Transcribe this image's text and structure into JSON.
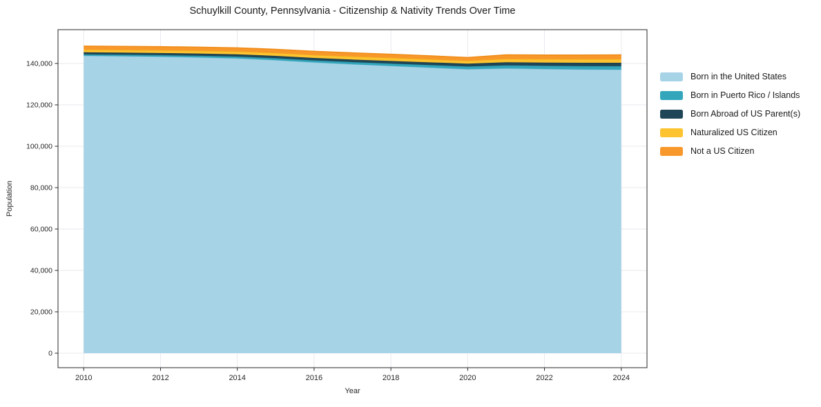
{
  "theme": {
    "background": "#ffffff",
    "grid_color": "#e9e9ef",
    "spine_color": "#262626",
    "text_color": "#1a1a1a"
  },
  "chart_data": {
    "type": "area",
    "stacked": true,
    "title": "Schuylkill County, Pennsylvania - Citizenship & Nativity Trends Over Time",
    "xlabel": "Year",
    "ylabel": "Population",
    "grid": true,
    "legend_position": "right-outside",
    "x": [
      2010,
      2011,
      2012,
      2013,
      2014,
      2015,
      2016,
      2017,
      2018,
      2019,
      2020,
      2021,
      2022,
      2023,
      2024
    ],
    "xlim": [
      2009.33,
      2024.67
    ],
    "ylim": [
      -7000,
      156333
    ],
    "xticks": [
      {
        "value": 2010,
        "label": "2010"
      },
      {
        "value": 2012,
        "label": "2012"
      },
      {
        "value": 2014,
        "label": "2014"
      },
      {
        "value": 2016,
        "label": "2016"
      },
      {
        "value": 2018,
        "label": "2018"
      },
      {
        "value": 2020,
        "label": "2020"
      },
      {
        "value": 2022,
        "label": "2022"
      },
      {
        "value": 2024,
        "label": "2024"
      }
    ],
    "yticks": [
      {
        "value": 0,
        "label": "0"
      },
      {
        "value": 20000,
        "label": "20,000"
      },
      {
        "value": 40000,
        "label": "40,000"
      },
      {
        "value": 60000,
        "label": "60,000"
      },
      {
        "value": 80000,
        "label": "80,000"
      },
      {
        "value": 100000,
        "label": "100,000"
      },
      {
        "value": 120000,
        "label": "120,000"
      },
      {
        "value": 140000,
        "label": "140,000"
      }
    ],
    "series": [
      {
        "name": "Born in the United States",
        "color": "#a7d3e6",
        "edge": "#8ec6dc",
        "values": [
          143700,
          143500,
          143250,
          142900,
          142450,
          141600,
          140500,
          139600,
          138800,
          138000,
          137200,
          137600,
          137300,
          137100,
          137000
        ]
      },
      {
        "name": "Born in Puerto Rico / Islands",
        "color": "#33a6bc",
        "edge": "#2b93a8",
        "values": [
          700,
          730,
          780,
          830,
          880,
          940,
          1000,
          1080,
          1170,
          1260,
          1350,
          1500,
          1580,
          1650,
          1700
        ]
      },
      {
        "name": "Born Abroad of US Parent(s)",
        "color": "#1f4656",
        "edge": "#1a3b49",
        "values": [
          1000,
          1010,
          1030,
          1060,
          1090,
          1120,
          1150,
          1200,
          1250,
          1300,
          1350,
          1500,
          1550,
          1600,
          1650
        ]
      },
      {
        "name": "Naturalized US Citizen",
        "color": "#fdc330",
        "edge": "#f0ad1b",
        "values": [
          1300,
          1320,
          1350,
          1380,
          1410,
          1440,
          1470,
          1500,
          1520,
          1480,
          1400,
          1620,
          1680,
          1720,
          1760
        ]
      },
      {
        "name": "Not a US Citizen",
        "color": "#f8982b",
        "edge": "#ee8913",
        "values": [
          1700,
          1710,
          1720,
          1730,
          1740,
          1760,
          1780,
          1770,
          1740,
          1690,
          1600,
          1950,
          1990,
          2020,
          2060
        ]
      }
    ]
  }
}
